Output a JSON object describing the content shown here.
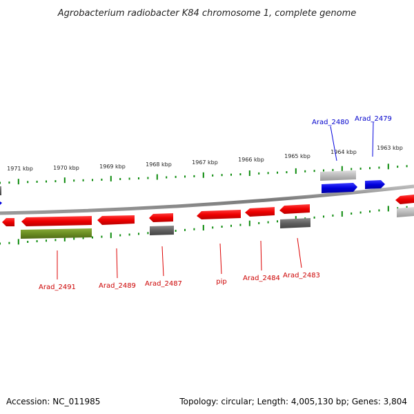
{
  "title": "Agrobacterium radiobacter K84 chromosome 1, complete genome",
  "accession": "Accession: NC_011985",
  "summary": "Topology: circular; Length: 4,005,130 bp; Genes: 3,804",
  "colors": {
    "forward_gene": "#0000dd",
    "reverse_gene": "#ee0000",
    "rna_or_other": "#6b8e23",
    "pseudo_dark": "#606060",
    "pseudo_light": "#bbbbbb",
    "backbone": "#888888",
    "tick": "#0b8a0b"
  },
  "ticks": [
    {
      "label": "1971 kbp"
    },
    {
      "label": "1970 kbp"
    },
    {
      "label": "1969 kbp"
    },
    {
      "label": "1968 kbp"
    },
    {
      "label": "1967 kbp"
    },
    {
      "label": "1966 kbp"
    },
    {
      "label": "1965 kbp"
    },
    {
      "label": "1964 kbp"
    },
    {
      "label": "1963 kbp"
    }
  ],
  "forward_labels": [
    {
      "label": "Arad_2480"
    },
    {
      "label": "Arad_2479"
    }
  ],
  "reverse_labels": [
    {
      "label": "Arad_2491"
    },
    {
      "label": "Arad_2489"
    },
    {
      "label": "Arad_2487"
    },
    {
      "label": "pip"
    },
    {
      "label": "Arad_2484"
    },
    {
      "label": "Arad_2483"
    }
  ]
}
